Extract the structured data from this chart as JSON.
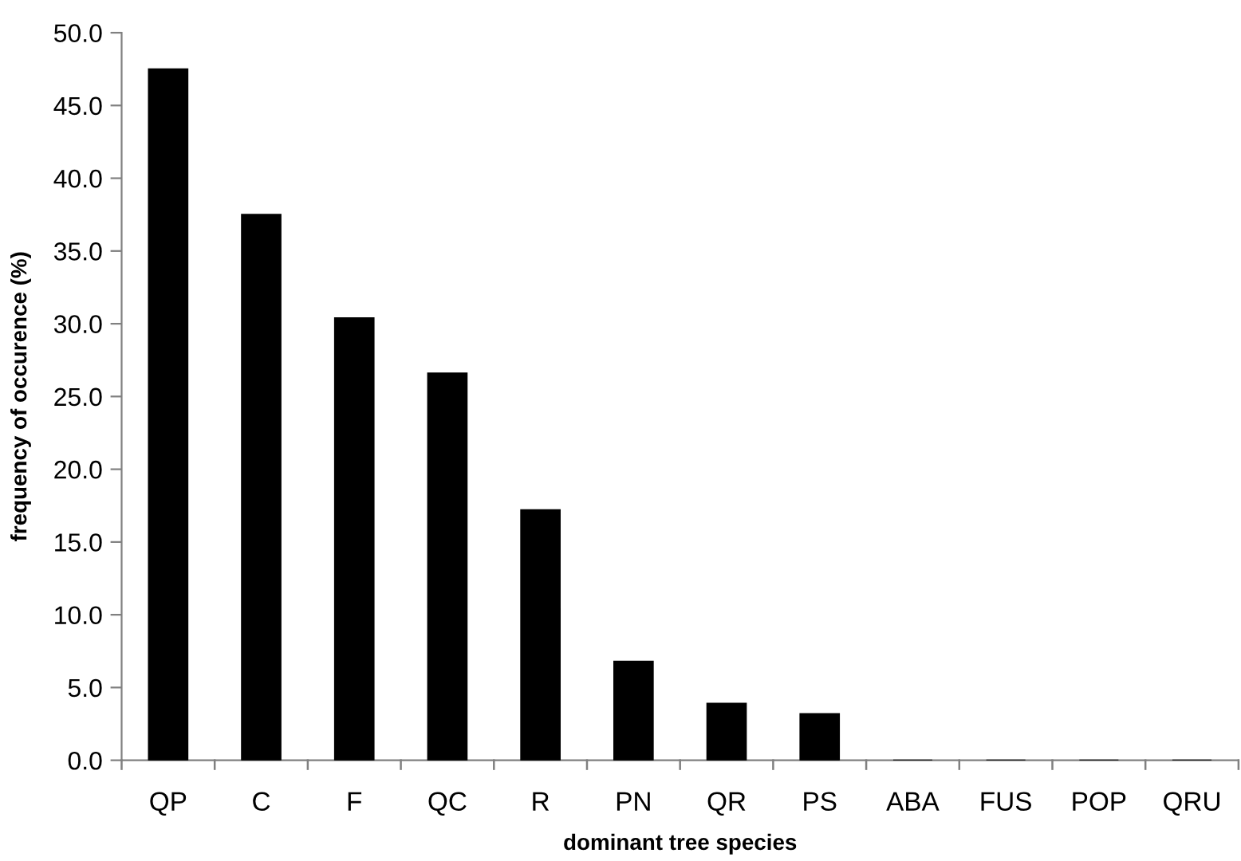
{
  "chart_data": {
    "type": "bar",
    "xlabel": "dominant tree species",
    "ylabel": "frequency of occurence (%)",
    "categories": [
      "QP",
      "C",
      "F",
      "QC",
      "R",
      "PN",
      "QR",
      "PS",
      "ABA",
      "FUS",
      "POP",
      "QRU"
    ],
    "values": [
      47.5,
      37.5,
      30.4,
      26.6,
      17.2,
      6.8,
      3.9,
      3.2,
      0,
      0,
      0,
      0
    ],
    "color": "#000000",
    "ylim": [
      0,
      50
    ],
    "yticks": [
      {
        "value": 0,
        "label": "0.0"
      },
      {
        "value": 5,
        "label": "5.0"
      },
      {
        "value": 10,
        "label": "10.0"
      },
      {
        "value": 15,
        "label": "15.0"
      },
      {
        "value": 20,
        "label": "20.0"
      },
      {
        "value": 25,
        "label": "25.0"
      },
      {
        "value": 30,
        "label": "30.0"
      },
      {
        "value": 35,
        "label": "35.0"
      },
      {
        "value": 40,
        "label": "40.0"
      },
      {
        "value": 45,
        "label": "45.0"
      },
      {
        "value": 50,
        "label": "50.0"
      }
    ],
    "grid": false
  }
}
